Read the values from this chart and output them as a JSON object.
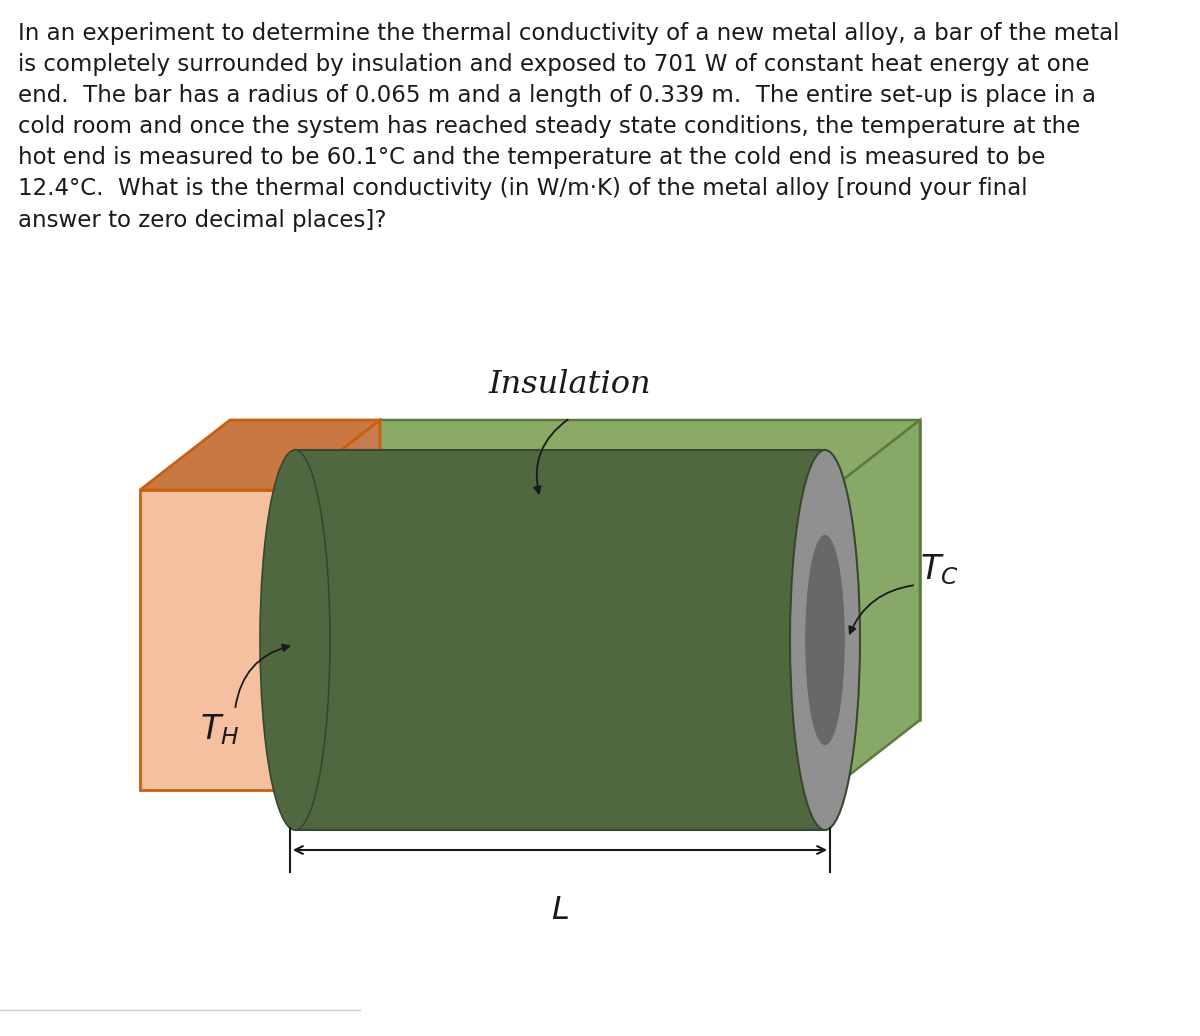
{
  "bg_color": "#ffffff",
  "text_color": "#1a1a1a",
  "hot_face_color": "#f5c0a0",
  "hot_top_color": "#c87840",
  "hot_right_color": "#b06030",
  "hot_border": "#c86010",
  "ins_front_color": "#a0bc80",
  "ins_top_color": "#8aaa65",
  "ins_right_color": "#88a868",
  "ins_back_color": "#b0c890",
  "ins_border": "#5a7a40",
  "bar_body_color": "#506840",
  "bar_left_color": "#506840",
  "bar_end_outer": "#909090",
  "bar_end_inner": "#686868",
  "bar_border": "#384830",
  "font_size_text": 16.5,
  "font_size_label": 22,
  "font_size_insulation": 23,
  "insulation_label": "Insulation",
  "TH_label": "$T_H$",
  "TC_label": "$T_C$",
  "L_label": "$L$"
}
